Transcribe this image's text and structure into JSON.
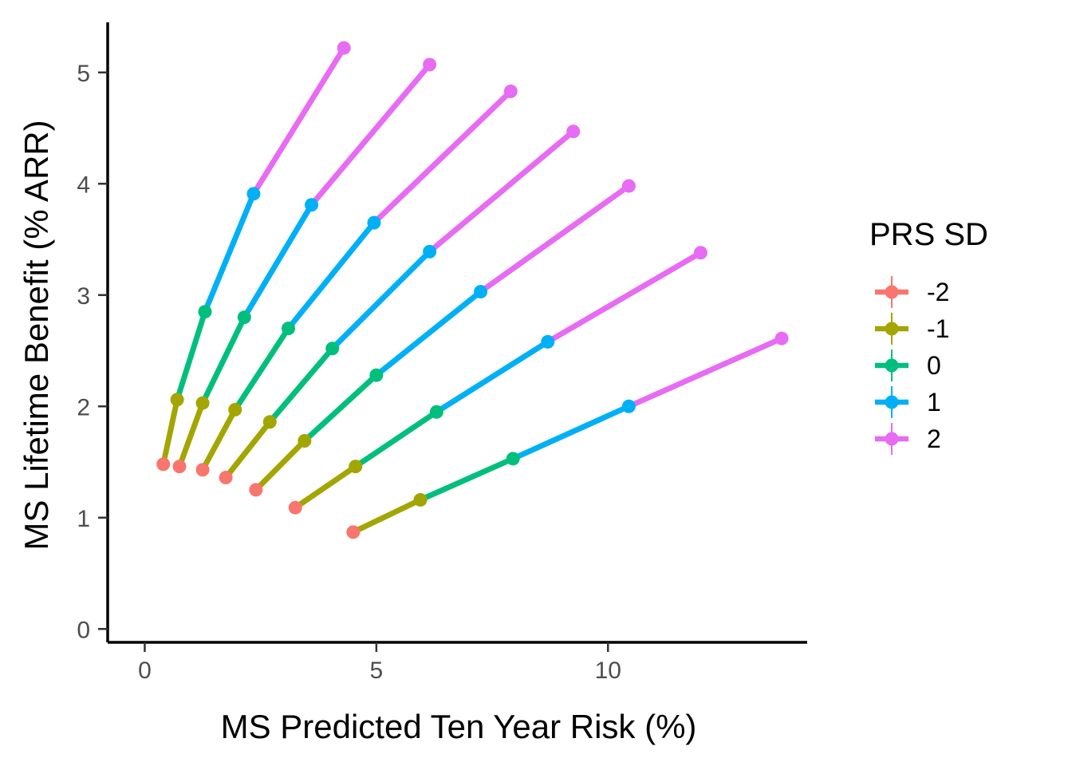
{
  "chart_data": {
    "type": "line",
    "xlabel": "MS Predicted Ten Year Risk (%)",
    "ylabel": "MS Lifetime Benefit (% ARR)",
    "xlim": [
      -0.8,
      14.3
    ],
    "ylim": [
      -0.12,
      5.45
    ],
    "x_ticks": [
      0,
      5,
      10
    ],
    "y_ticks": [
      0,
      1,
      2,
      3,
      4,
      5
    ],
    "x_tick_labels": [
      "0",
      "5",
      "10"
    ],
    "y_tick_labels": [
      "0",
      "1",
      "2",
      "3",
      "4",
      "5"
    ],
    "legend": {
      "title": "PRS SD",
      "position": "right",
      "entries": [
        {
          "label": "-2",
          "color": "#F8766D"
        },
        {
          "label": "-1",
          "color": "#A3A500"
        },
        {
          "label": "0",
          "color": "#00BF7D"
        },
        {
          "label": "1",
          "color": "#00B0F6"
        },
        {
          "label": "2",
          "color": "#E76BF3"
        }
      ]
    },
    "prs_levels": [
      "-2",
      "-1",
      "0",
      "1",
      "2"
    ],
    "groups": [
      {
        "points": [
          [
            0.4,
            1.48
          ],
          [
            0.7,
            2.06
          ],
          [
            1.3,
            2.85
          ],
          [
            2.35,
            3.91
          ],
          [
            4.3,
            5.22
          ]
        ]
      },
      {
        "points": [
          [
            0.75,
            1.46
          ],
          [
            1.25,
            2.03
          ],
          [
            2.15,
            2.8
          ],
          [
            3.6,
            3.81
          ],
          [
            6.15,
            5.07
          ]
        ]
      },
      {
        "points": [
          [
            1.25,
            1.43
          ],
          [
            1.95,
            1.97
          ],
          [
            3.1,
            2.7
          ],
          [
            4.95,
            3.65
          ],
          [
            7.9,
            4.83
          ]
        ]
      },
      {
        "points": [
          [
            1.75,
            1.36
          ],
          [
            2.7,
            1.86
          ],
          [
            4.05,
            2.52
          ],
          [
            6.15,
            3.39
          ],
          [
            9.25,
            4.47
          ]
        ]
      },
      {
        "points": [
          [
            2.4,
            1.25
          ],
          [
            3.45,
            1.69
          ],
          [
            5.0,
            2.28
          ],
          [
            7.25,
            3.03
          ],
          [
            10.45,
            3.98
          ]
        ]
      },
      {
        "points": [
          [
            3.25,
            1.09
          ],
          [
            4.55,
            1.46
          ],
          [
            6.3,
            1.95
          ],
          [
            8.7,
            2.58
          ],
          [
            12.0,
            3.38
          ]
        ]
      },
      {
        "points": [
          [
            4.5,
            0.87
          ],
          [
            5.95,
            1.16
          ],
          [
            7.95,
            1.53
          ],
          [
            10.45,
            2.0
          ],
          [
            13.75,
            2.61
          ]
        ]
      }
    ]
  }
}
